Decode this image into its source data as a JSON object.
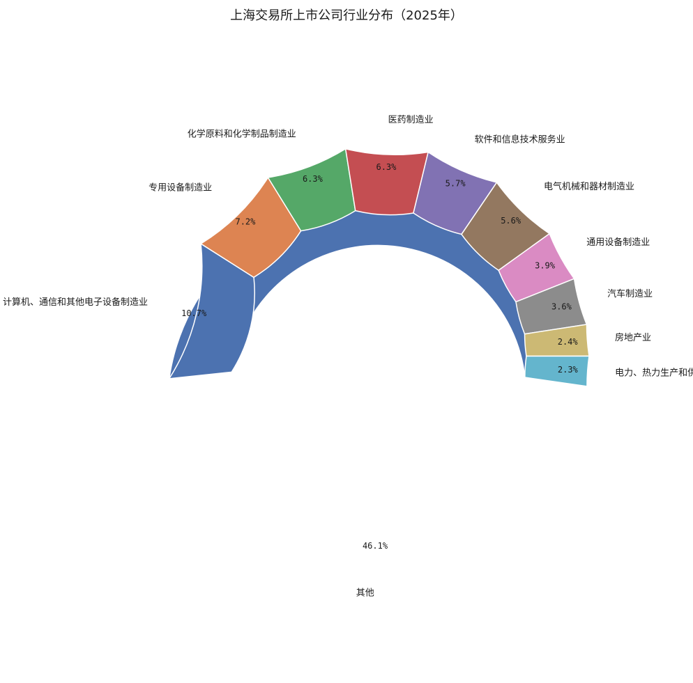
{
  "chart_data": {
    "type": "pie",
    "variant": "donut",
    "title": "上海交易所上市公司行业分布（2025年）",
    "direction": "clockwise",
    "categories": [
      "其他",
      "计算机、通信和其他电子设备制造业",
      "专用设备制造业",
      "化学原料和化学制品制造业",
      "医药制造业",
      "软件和信息技术服务业",
      "电气机械和器材制造业",
      "通用设备制造业",
      "汽车制造业",
      "房地产业",
      "电力、热力生产和供应业"
    ],
    "values": [
      46.1,
      10.7,
      7.2,
      6.3,
      6.3,
      5.7,
      5.6,
      3.9,
      3.6,
      2.4,
      2.3
    ],
    "value_labels": [
      "46.1%",
      "10.7%",
      "7.2%",
      "6.3%",
      "6.3%",
      "5.7%",
      "5.6%",
      "3.9%",
      "3.6%",
      "2.4%",
      "2.3%"
    ],
    "colors": [
      "#4c72b0",
      "#4c72b0",
      "#dd8452",
      "#55a868",
      "#c44e52",
      "#8172b3",
      "#937860",
      "#da8bc3",
      "#8c8c8c",
      "#ccb974",
      "#64b5cd"
    ]
  }
}
